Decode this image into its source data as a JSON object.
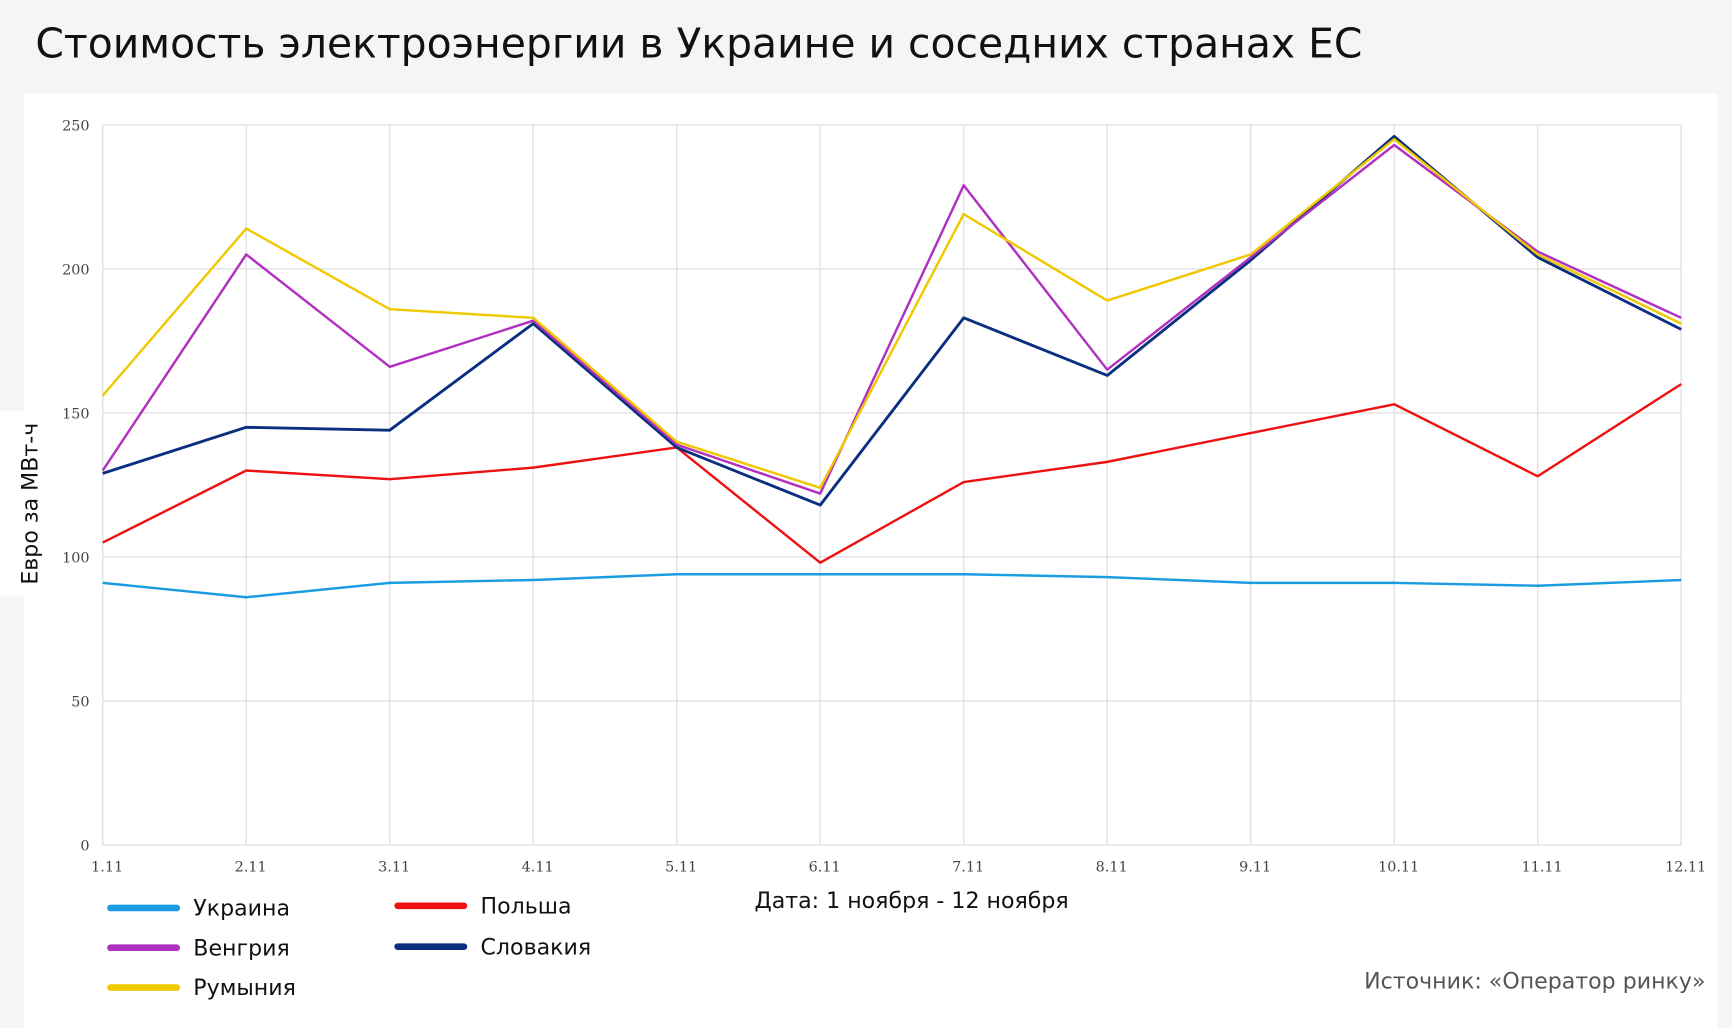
{
  "title": "Стоимость электроэнергии в Украине и соседних странах ЕС",
  "source": "Источник: «Оператор ринку»",
  "chart_data": {
    "type": "line",
    "title": "Стоимость электроэнергии в Украине и соседних странах ЕС",
    "xlabel": "Дата: 1 ноября - 12 ноября",
    "ylabel": "Евро за МВт-ч",
    "ylim": [
      0,
      250
    ],
    "yticks": [
      0,
      50,
      100,
      150,
      200,
      250
    ],
    "grid": true,
    "legend_position": "bottom-left",
    "categories": [
      "1.11",
      "2.11",
      "3.11",
      "4.11",
      "5.11",
      "6.11",
      "7.11",
      "8.11",
      "9.11",
      "10.11",
      "11.11",
      "12.11"
    ],
    "series": [
      {
        "name": "Украина",
        "color": "#1a9de0",
        "values": [
          91,
          86,
          91,
          92,
          94,
          94,
          94,
          93,
          91,
          91,
          90,
          92
        ]
      },
      {
        "name": "Польша",
        "color": "#ee1111",
        "values": [
          105,
          130,
          127,
          131,
          138,
          98,
          126,
          133,
          143,
          153,
          128,
          160
        ]
      },
      {
        "name": "Венгрия",
        "color": "#b030c0",
        "values": [
          130,
          205,
          166,
          182,
          139,
          122,
          229,
          165,
          204,
          243,
          206,
          183
        ]
      },
      {
        "name": "Словакия",
        "color": "#0a2f80",
        "values": [
          129,
          145,
          144,
          181,
          138,
          118,
          183,
          163,
          203,
          246,
          204,
          179
        ]
      },
      {
        "name": "Румыния",
        "color": "#f0c800",
        "values": [
          156,
          214,
          186,
          183,
          140,
          124,
          219,
          189,
          205,
          245,
          205,
          181
        ]
      }
    ]
  }
}
